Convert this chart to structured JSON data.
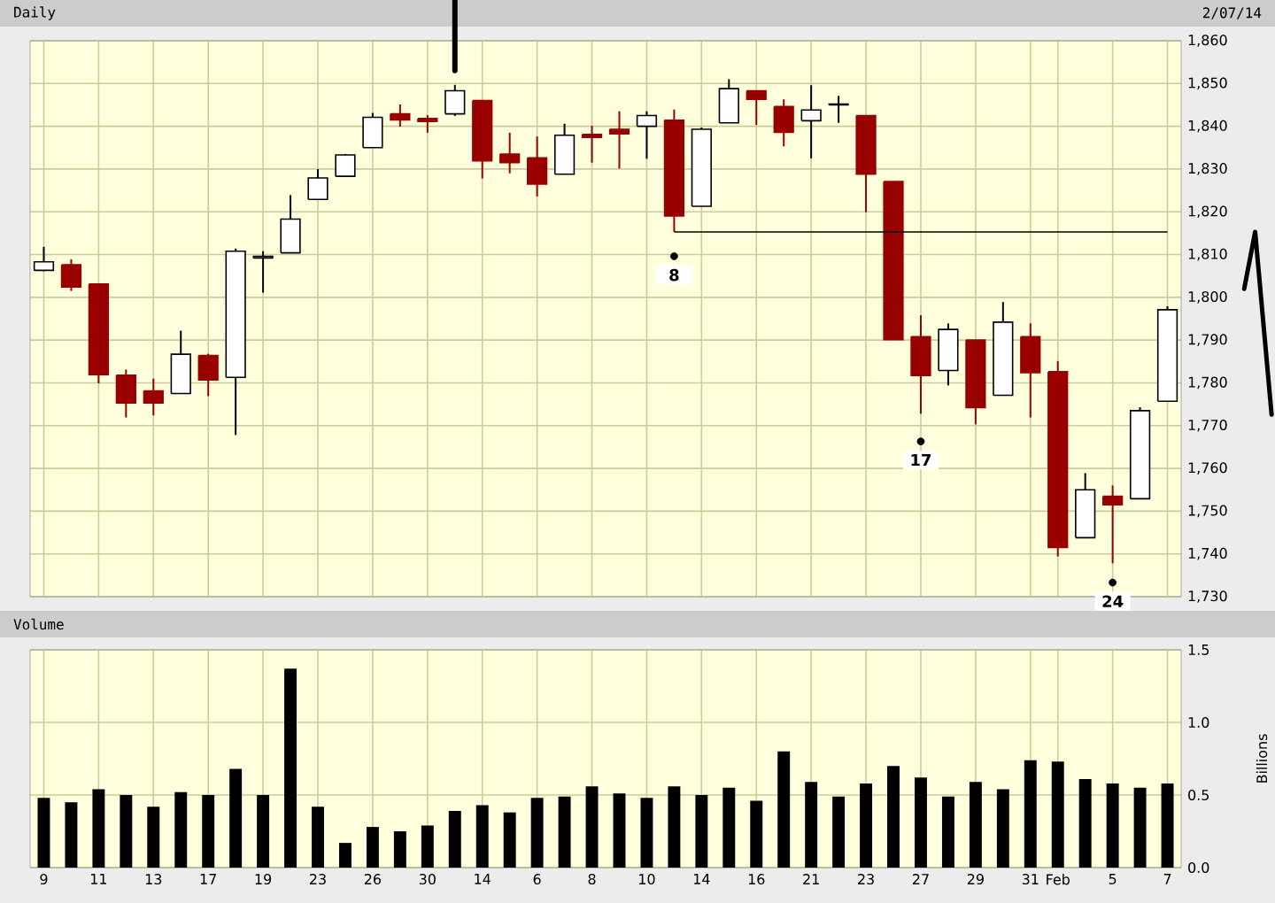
{
  "chart_data": [
    {
      "type": "candlestick",
      "title": "Daily",
      "subtitle": "2/07/14",
      "categories": [
        null,
        null,
        null,
        null,
        null,
        null,
        null,
        null,
        null,
        null,
        null,
        null,
        null,
        null,
        null,
        null,
        null,
        null,
        null,
        null,
        null,
        null,
        null,
        null,
        null,
        null,
        null,
        null,
        null,
        null,
        null,
        null,
        null,
        null,
        null,
        null,
        null,
        null,
        null,
        null,
        null,
        null
      ],
      "ohlc": [
        [
          1806.3,
          1811.8,
          1806.1,
          1808.3
        ],
        [
          1807.6,
          1808.9,
          1801.5,
          1802.4
        ],
        [
          1803.1,
          1803.1,
          1779.9,
          1781.9
        ],
        [
          1781.8,
          1783.1,
          1771.9,
          1775.3
        ],
        [
          1778.1,
          1781.0,
          1772.4,
          1775.3
        ],
        [
          1777.5,
          1792.2,
          1777.5,
          1786.7
        ],
        [
          1786.4,
          1786.8,
          1776.9,
          1780.7
        ],
        [
          1781.3,
          1811.4,
          1767.8,
          1810.8
        ],
        [
          1809.2,
          1810.8,
          1801.1,
          1809.6
        ],
        [
          1810.4,
          1823.9,
          1810.4,
          1818.3
        ],
        [
          1822.9,
          1830.0,
          1822.9,
          1827.9
        ],
        [
          1828.3,
          1833.5,
          1828.3,
          1833.3
        ],
        [
          1835.0,
          1843.1,
          1835.0,
          1842.1
        ],
        [
          1842.9,
          1845.1,
          1839.9,
          1841.5
        ],
        [
          1841.8,
          1842.6,
          1838.5,
          1841.1
        ],
        [
          1842.9,
          1849.7,
          1842.4,
          1848.3
        ],
        [
          1846.0,
          1846.0,
          1827.8,
          1831.9
        ],
        [
          1833.5,
          1838.5,
          1829.0,
          1831.5
        ],
        [
          1832.6,
          1837.6,
          1823.6,
          1826.5
        ],
        [
          1828.8,
          1840.6,
          1828.8,
          1837.9
        ],
        [
          1838.1,
          1840.1,
          1831.5,
          1837.4
        ],
        [
          1839.3,
          1843.5,
          1830.1,
          1838.2
        ],
        [
          1840.0,
          1843.5,
          1832.4,
          1842.5
        ],
        [
          1841.4,
          1843.9,
          1815.3,
          1819.0
        ],
        [
          1821.3,
          1839.7,
          1821.3,
          1839.3
        ],
        [
          1840.8,
          1851.0,
          1840.8,
          1848.8
        ],
        [
          1848.3,
          1848.3,
          1840.3,
          1846.3
        ],
        [
          1844.6,
          1846.3,
          1835.3,
          1838.6
        ],
        [
          1841.3,
          1849.6,
          1832.5,
          1843.8
        ],
        [
          1845.0,
          1847.1,
          1840.8,
          1845.2
        ],
        [
          1842.5,
          1842.5,
          1819.9,
          1828.8
        ],
        [
          1827.1,
          1827.1,
          1790.1,
          1790.1
        ],
        [
          1790.8,
          1795.8,
          1772.8,
          1781.7
        ],
        [
          1782.9,
          1793.9,
          1779.4,
          1792.5
        ],
        [
          1790.0,
          1790.0,
          1770.3,
          1774.2
        ],
        [
          1777.1,
          1798.9,
          1777.1,
          1794.2
        ],
        [
          1790.8,
          1793.9,
          1771.9,
          1782.4
        ],
        [
          1782.6,
          1785.1,
          1739.4,
          1741.5
        ],
        [
          1743.8,
          1758.9,
          1743.8,
          1755.0
        ],
        [
          1753.5,
          1756.0,
          1737.8,
          1751.5
        ],
        [
          1752.9,
          1774.3,
          1752.9,
          1773.5
        ],
        [
          1775.7,
          1797.9,
          1775.7,
          1797.1
        ]
      ],
      "colors": [
        "#000000",
        "#990000",
        "#990000",
        "#990000",
        "#990000",
        "#000000",
        "#990000",
        "#000000",
        "#000000",
        "#000000",
        "#000000",
        "#000000",
        "#000000",
        "#990000",
        "#990000",
        "#000000",
        "#990000",
        "#990000",
        "#990000",
        "#000000",
        "#990000",
        "#990000",
        "#000000",
        "#990000",
        "#000000",
        "#000000",
        "#990000",
        "#990000",
        "#000000",
        "#000000",
        "#990000",
        "#990000",
        "#990000",
        "#000000",
        "#990000",
        "#000000",
        "#990000",
        "#990000",
        "#000000",
        "#990000",
        "#000000",
        "#000000"
      ],
      "series": [
        {
          "type": "line",
          "color": "#000000",
          "values": [
            null,
            null,
            null,
            null,
            null,
            null,
            null,
            null,
            null,
            null,
            null,
            null,
            null,
            null,
            null,
            null,
            null,
            null,
            null,
            null,
            null,
            null,
            null,
            1815.3,
            1815.3,
            1815.3,
            1815.3,
            1815.3,
            1815.3,
            1815.3,
            1815.3,
            1815.3,
            1815.3,
            1815.3,
            1815.3,
            1815.3,
            1815.3,
            1815.3,
            1815.3,
            1815.3,
            1815.3,
            1815.3
          ]
        },
        {
          "type": "scatter",
          "color": "#000000",
          "values": [
            null,
            null,
            null,
            null,
            null,
            null,
            null,
            null,
            null,
            null,
            null,
            null,
            null,
            null,
            null,
            null,
            null,
            null,
            null,
            null,
            null,
            null,
            null,
            1809.6,
            null,
            null,
            null,
            null,
            null,
            null,
            null,
            null,
            1766.3,
            null,
            null,
            null,
            null,
            null,
            null,
            1733.3,
            null,
            null
          ]
        }
      ],
      "annotations": [
        {
          "text": "8",
          "y": 1809.6
        },
        {
          "text": "17",
          "y": 1766.3
        },
        {
          "text": "24",
          "y": 1733.3
        }
      ],
      "ylim": [
        1730,
        1860
      ],
      "yticks": [
        {
          "value": 1730,
          "label": "1,730"
        },
        {
          "value": 1740,
          "label": "1,740"
        },
        {
          "value": 1750,
          "label": "1,750"
        },
        {
          "value": 1760,
          "label": "1,760"
        },
        {
          "value": 1770,
          "label": "1,770"
        },
        {
          "value": 1780,
          "label": "1,780"
        },
        {
          "value": 1790,
          "label": "1,790"
        },
        {
          "value": 1800,
          "label": "1,800"
        },
        {
          "value": 1810,
          "label": "1,810"
        },
        {
          "value": 1820,
          "label": "1,820"
        },
        {
          "value": 1830,
          "label": "1,830"
        },
        {
          "value": 1840,
          "label": "1,840"
        },
        {
          "value": 1850,
          "label": "1,850"
        },
        {
          "value": 1860,
          "label": "1,860"
        }
      ],
      "grid": true,
      "tick_labels": "y"
    },
    {
      "type": "bar",
      "title": "Volume",
      "ylabel": "Billions",
      "categories": [
        "9",
        null,
        "11",
        null,
        "13",
        null,
        "17",
        null,
        "19",
        null,
        "23",
        null,
        "26",
        null,
        "30",
        null,
        "14",
        null,
        "6",
        null,
        "8",
        null,
        "10",
        null,
        "14",
        null,
        "16",
        null,
        "21",
        null,
        "23",
        null,
        "27",
        null,
        "29",
        null,
        "31",
        "Feb",
        null,
        "5",
        null,
        "7"
      ],
      "values": [
        0.48,
        0.45,
        0.54,
        0.5,
        0.42,
        0.52,
        0.5,
        0.68,
        0.5,
        1.37,
        0.42,
        0.17,
        0.28,
        0.25,
        0.29,
        0.39,
        0.43,
        0.38,
        0.48,
        0.49,
        0.56,
        0.51,
        0.48,
        0.56,
        0.5,
        0.55,
        0.46,
        0.8,
        0.59,
        0.49,
        0.58,
        0.7,
        0.62,
        0.49,
        0.59,
        0.54,
        0.74,
        0.73,
        0.61,
        0.58,
        0.55,
        0.58
      ],
      "color": "#000000",
      "ylim": [
        0,
        1.5
      ],
      "yticks": [
        {
          "value": 0,
          "label": "0.0"
        },
        {
          "value": 0.5,
          "label": "0.5"
        },
        {
          "value": 1,
          "label": "1.0"
        },
        {
          "value": 1.5,
          "label": "1.5"
        }
      ],
      "grid": true
    }
  ]
}
